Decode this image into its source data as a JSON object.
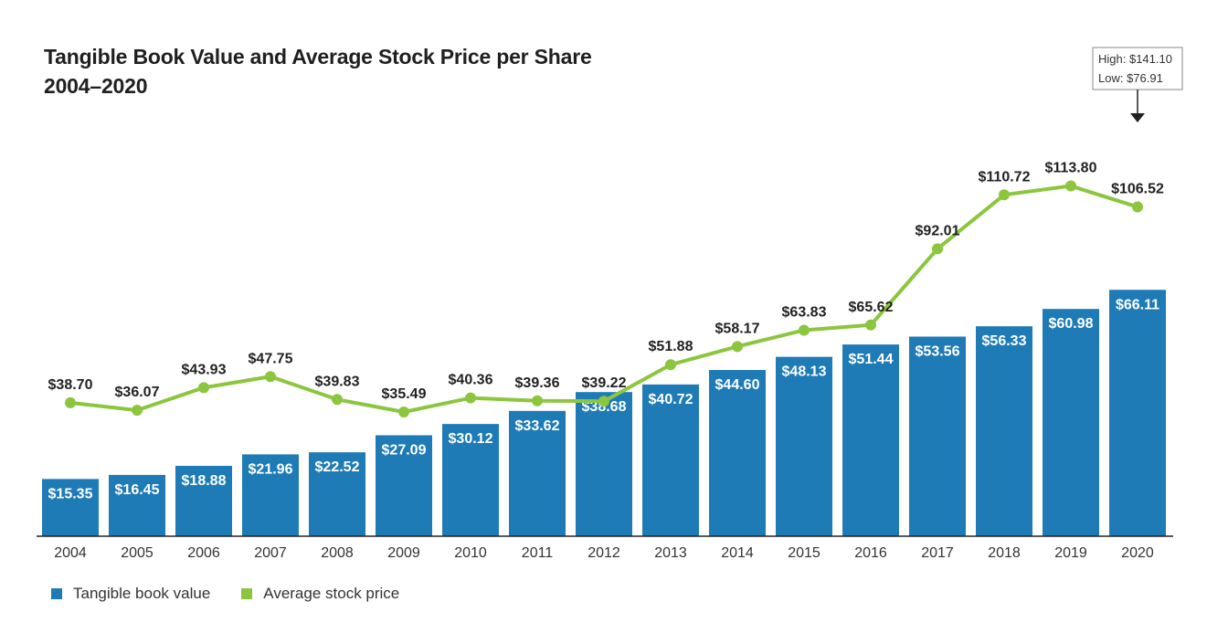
{
  "title": {
    "line1": "Tangible Book Value and Average Stock Price per Share",
    "line2": "2004–2020"
  },
  "colors": {
    "bar": "#1f7bb6",
    "line": "#8cc63f",
    "axis": "#222222",
    "text": "#222222"
  },
  "chart_data": {
    "type": "bar",
    "categories": [
      "2004",
      "2005",
      "2006",
      "2007",
      "2008",
      "2009",
      "2010",
      "2011",
      "2012",
      "2013",
      "2014",
      "2015",
      "2016",
      "2017",
      "2018",
      "2019",
      "2020"
    ],
    "series": [
      {
        "name": "Tangible book value",
        "type": "bar",
        "values": [
          15.35,
          16.45,
          18.88,
          21.96,
          22.52,
          27.09,
          30.12,
          33.62,
          38.68,
          40.72,
          44.6,
          48.13,
          51.44,
          53.56,
          56.33,
          60.98,
          66.11
        ],
        "labels": [
          "$15.35",
          "$16.45",
          "$18.88",
          "$21.96",
          "$22.52",
          "$27.09",
          "$30.12",
          "$33.62",
          "$38.68",
          "$40.72",
          "$44.60",
          "$48.13",
          "$51.44",
          "$53.56",
          "$56.33",
          "$60.98",
          "$66.11"
        ]
      },
      {
        "name": "Average stock price",
        "type": "line",
        "values": [
          38.7,
          36.07,
          43.93,
          47.75,
          39.83,
          35.49,
          40.36,
          39.36,
          39.22,
          51.88,
          58.17,
          63.83,
          65.62,
          92.01,
          110.72,
          113.8,
          106.52
        ],
        "labels": [
          "$38.70",
          "$36.07",
          "$43.93",
          "$47.75",
          "$39.83",
          "$35.49",
          "$40.36",
          "$39.36",
          "$39.22",
          "$51.88",
          "$58.17",
          "$63.83",
          "$65.62",
          "$92.01",
          "$110.72",
          "$113.80",
          "$106.52"
        ]
      }
    ],
    "annotation": {
      "category": "2020",
      "high": "High: $141.10",
      "low": "Low: $76.91"
    },
    "grid": false,
    "legend_position": "bottom-left"
  }
}
